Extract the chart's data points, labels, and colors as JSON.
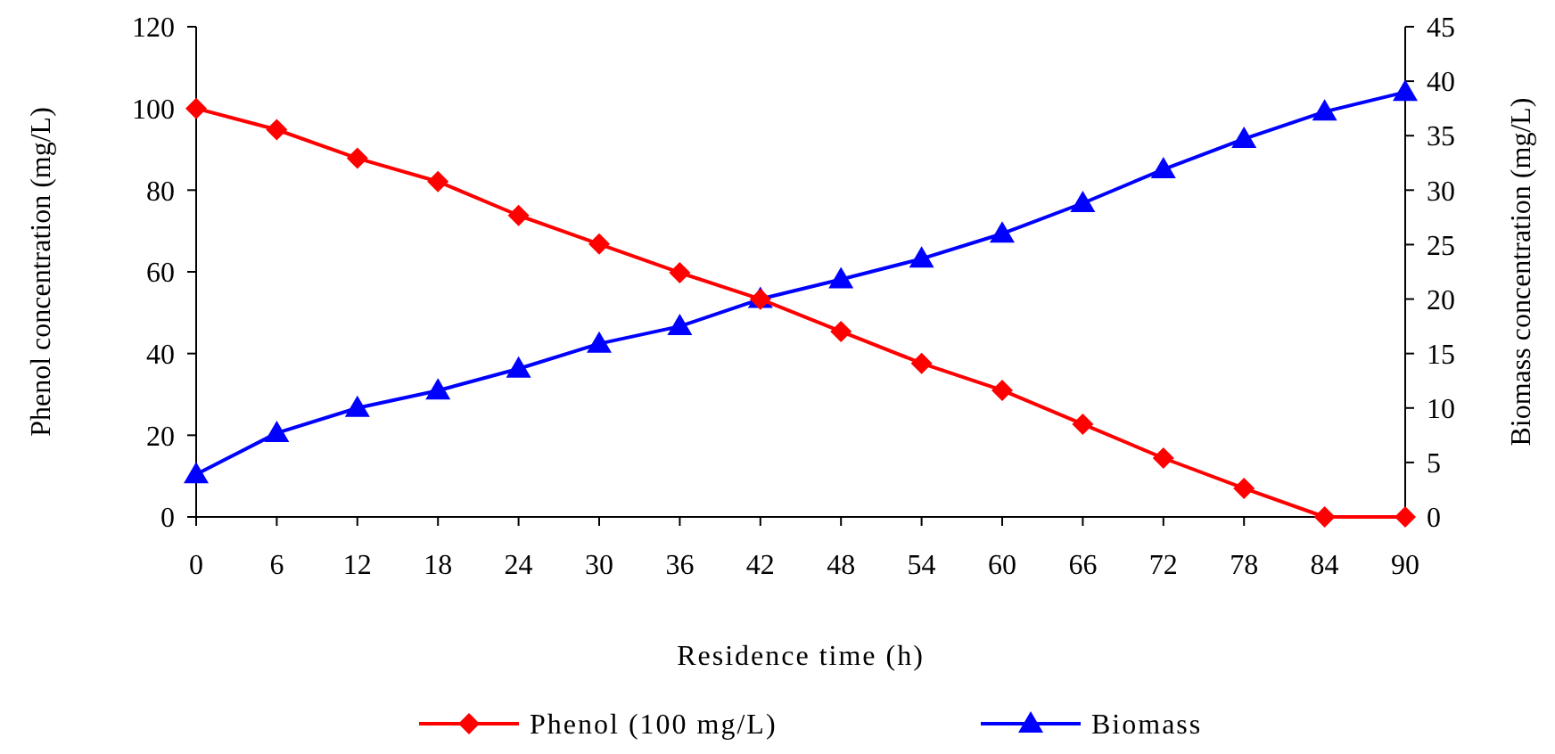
{
  "chart_data": {
    "type": "line",
    "xlabel": "Residence time (h)",
    "ylabel": "Phenol concentration (mg/L)",
    "y2label": "Biomass concentration (mg/L)",
    "x": [
      0,
      6,
      12,
      18,
      24,
      30,
      36,
      42,
      48,
      54,
      60,
      66,
      72,
      78,
      84,
      90
    ],
    "xlim": [
      0,
      90
    ],
    "xticks": [
      0,
      6,
      12,
      18,
      24,
      30,
      36,
      42,
      48,
      54,
      60,
      66,
      72,
      78,
      84,
      90
    ],
    "ylim": [
      0,
      120
    ],
    "yticks": [
      0,
      20,
      40,
      60,
      80,
      100,
      120
    ],
    "y2lim": [
      0,
      45
    ],
    "y2ticks": [
      0,
      5,
      10,
      15,
      20,
      25,
      30,
      35,
      40,
      45
    ],
    "grid": false,
    "legend": "bottom",
    "series": [
      {
        "name": "Phenol (100 mg/L)",
        "color": "#ff0000",
        "marker": "diamond",
        "values": [
          100,
          94.8,
          87.8,
          82.1,
          73.8,
          66.8,
          59.8,
          53.3,
          45.4,
          37.6,
          31.0,
          22.7,
          14.4,
          7.0,
          0,
          0
        ]
      },
      {
        "name": "Biomass",
        "color": "#0000ff",
        "marker": "triangle",
        "axis": "y2",
        "values": [
          3.9,
          7.7,
          10,
          11.6,
          13.6,
          15.9,
          17.5,
          20,
          21.8,
          23.7,
          26,
          28.8,
          31.9,
          34.7,
          37.2,
          39
        ]
      }
    ]
  }
}
